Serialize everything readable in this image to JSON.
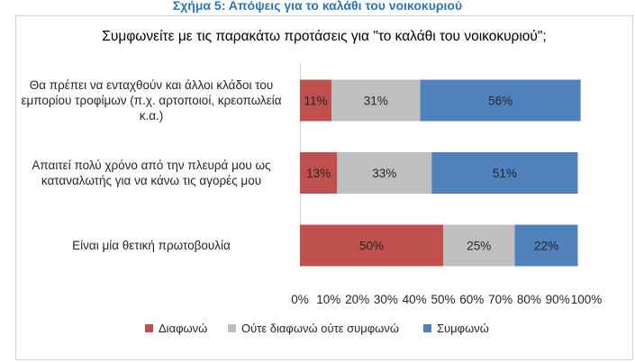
{
  "caption": "Σχήμα 5: Απόψεις για το καλάθι του νοικοκυριού",
  "colors": {
    "disagree": "#c0504d",
    "neutral": "#bfbfbf",
    "agree": "#4f81bd",
    "axis_text": "#262626",
    "caption": "#2e75b6"
  },
  "chart_data": {
    "type": "bar",
    "orientation": "horizontal",
    "stacked": "percent",
    "title": "Συμφωνείτε με τις παρακάτω προτάσεις για \"το καλάθι του νοικοκυριού\";",
    "categories": [
      "Θα πρέπει να ενταχθούν και άλλοι κλάδοι του\nεμπορίου τροφίμων (π.χ. αρτοποιοί, κρεοπωλεία\nκ.α.)",
      "Απαιτεί πολύ χρόνο από την πλευρά μου ως\nκαταναλωτής για να κάνω τις αγορές μου",
      "Είναι μία θετική πρωτοβουλία"
    ],
    "series": [
      {
        "name": "Διαφωνώ",
        "values": [
          11,
          13,
          50
        ],
        "labels": [
          "11%",
          "13%",
          "50%"
        ]
      },
      {
        "name": "Ούτε διαφωνώ ούτε συμφωνώ",
        "values": [
          31,
          33,
          25
        ],
        "labels": [
          "31%",
          "33%",
          "25%"
        ]
      },
      {
        "name": "Συμφωνώ",
        "values": [
          56,
          51,
          22
        ],
        "labels": [
          "56%",
          "51%",
          "22%"
        ]
      }
    ],
    "xlim": [
      0,
      100
    ],
    "xticks": [
      "0%",
      "10%",
      "20%",
      "30%",
      "40%",
      "50%",
      "60%",
      "70%",
      "80%",
      "90%",
      "100%"
    ],
    "grid": false,
    "legend": "bottom"
  }
}
